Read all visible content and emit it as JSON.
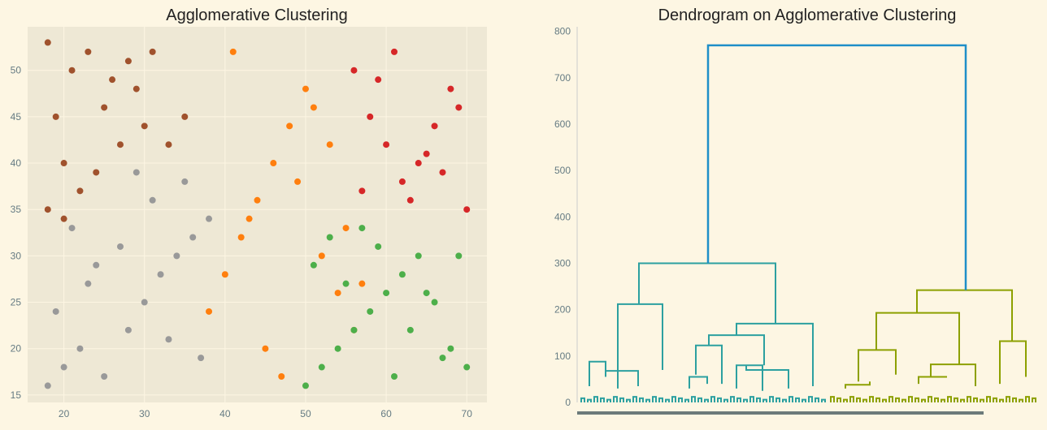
{
  "chart_data": [
    {
      "type": "scatter",
      "title": "Agglomerative Clustering",
      "xlabel": "",
      "ylabel": "",
      "xlim": [
        15.5,
        72.5
      ],
      "ylim": [
        14.2,
        54.7
      ],
      "xticks": [
        20,
        30,
        40,
        50,
        60,
        70
      ],
      "yticks": [
        15,
        20,
        25,
        30,
        35,
        40,
        45,
        50
      ],
      "grid": true,
      "series": [
        {
          "color": "#999999",
          "x": [
            18,
            20,
            22,
            25,
            28,
            30,
            32,
            34,
            36,
            38,
            19,
            23,
            27,
            31,
            35,
            21,
            29,
            33,
            24,
            37
          ],
          "y": [
            16,
            18,
            20,
            17,
            22,
            25,
            28,
            30,
            32,
            34,
            24,
            27,
            31,
            36,
            38,
            33,
            39,
            21,
            29,
            19
          ]
        },
        {
          "color": "#a0522d",
          "x": [
            18,
            19,
            20,
            22,
            24,
            26,
            28,
            30,
            33,
            35,
            21,
            23,
            25,
            27,
            29,
            31,
            18,
            20
          ],
          "y": [
            53,
            45,
            40,
            37,
            39,
            49,
            51,
            44,
            42,
            45,
            50,
            52,
            46,
            42,
            48,
            52,
            35,
            34
          ]
        },
        {
          "color": "#ff7f0e",
          "x": [
            38,
            40,
            42,
            44,
            46,
            48,
            50,
            52,
            54,
            56,
            41,
            43,
            45,
            47,
            49,
            51,
            53,
            55,
            57
          ],
          "y": [
            24,
            28,
            32,
            36,
            40,
            44,
            48,
            30,
            26,
            22,
            52,
            34,
            20,
            17,
            38,
            46,
            42,
            33,
            27
          ]
        },
        {
          "color": "#d62728",
          "x": [
            56,
            58,
            60,
            62,
            64,
            66,
            68,
            70,
            57,
            59,
            61,
            63,
            65,
            67,
            69
          ],
          "y": [
            50,
            45,
            42,
            38,
            40,
            44,
            48,
            35,
            37,
            49,
            52,
            36,
            41,
            39,
            46
          ]
        },
        {
          "color": "#4daf4a",
          "x": [
            50,
            52,
            54,
            56,
            58,
            60,
            62,
            64,
            66,
            68,
            70,
            51,
            53,
            55,
            57,
            59,
            61,
            63,
            65,
            67,
            69
          ],
          "y": [
            16,
            18,
            20,
            22,
            24,
            26,
            28,
            30,
            25,
            20,
            18,
            29,
            32,
            27,
            33,
            31,
            17,
            22,
            26,
            19,
            30
          ]
        }
      ]
    },
    {
      "type": "dendrogram",
      "title": "Dendrogram on Agglomerative Clustering",
      "xlabel": "",
      "ylabel": "",
      "ylim": [
        0,
        810
      ],
      "yticks": [
        0,
        100,
        200,
        300,
        400,
        500,
        600,
        700,
        800
      ],
      "root_height": 770,
      "clusters": [
        {
          "name": "",
          "color": "#2ca02c",
          "merge_heights": [
            300,
            212,
            170,
            145,
            123,
            88,
            80,
            70,
            55,
            40,
            35,
            30
          ]
        },
        {
          "name": "",
          "color": "#9acd32",
          "merge_heights": [
            242,
            193,
            132,
            113,
            82,
            65,
            55,
            45,
            38,
            30
          ]
        }
      ]
    }
  ]
}
